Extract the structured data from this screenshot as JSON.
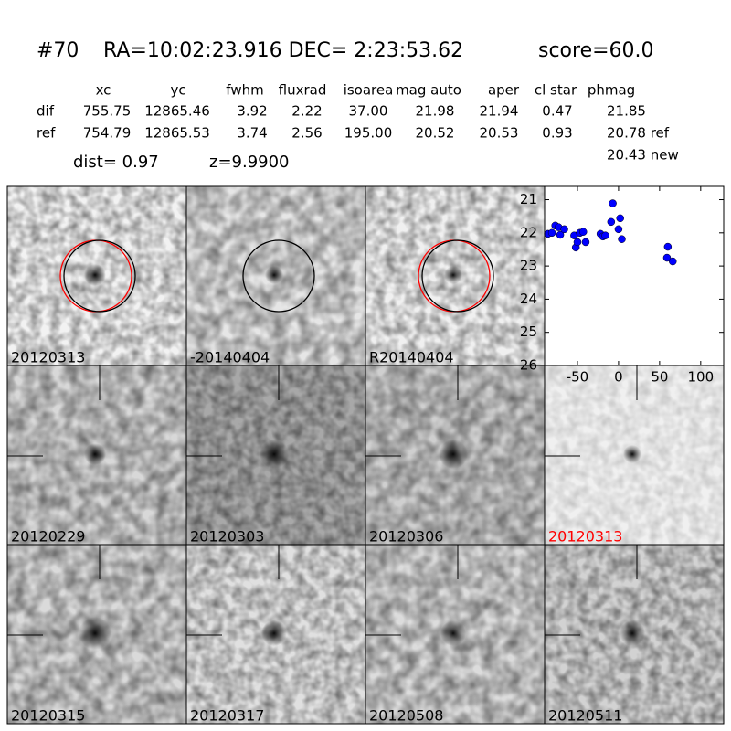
{
  "header": {
    "id": "#70",
    "coords": "RA=10:02:23.916 DEC= 2:23:53.62",
    "score": "score=60.0"
  },
  "table": {
    "columns": [
      "xc",
      "yc",
      "fwhm",
      "fluxrad",
      "isoarea",
      "mag auto",
      "aper",
      "cl star",
      "phmag"
    ],
    "rows": [
      [
        "dif",
        "755.75",
        "12865.46",
        "3.92",
        "2.22",
        "37.00",
        "21.98",
        "21.94",
        "0.47",
        "21.85"
      ],
      [
        "ref",
        "754.79",
        "12865.53",
        "3.74",
        "2.56",
        "195.00",
        "20.52",
        "20.53",
        "0.93",
        "20.78 ref"
      ]
    ],
    "extra": "20.43 new"
  },
  "dist": "dist=  0.97",
  "z": "z=9.9900",
  "stamps": [
    {
      "label": "20120313",
      "color": "#000000"
    },
    {
      "label": "-20140404",
      "color": "#000000"
    },
    {
      "label": "R20140404",
      "color": "#000000"
    },
    {
      "label": "20120229",
      "color": "#000000"
    },
    {
      "label": "20120303",
      "color": "#000000"
    },
    {
      "label": "20120306",
      "color": "#000000"
    },
    {
      "label": "20120313",
      "color": "#ff0000"
    },
    {
      "label": "20120315",
      "color": "#000000"
    },
    {
      "label": "20120317",
      "color": "#000000"
    },
    {
      "label": "20120508",
      "color": "#000000"
    },
    {
      "label": "20120511",
      "color": "#000000"
    }
  ],
  "chart_data": {
    "type": "scatter",
    "x": [
      -86,
      -81,
      -77,
      -73,
      -71,
      -66,
      -54,
      -52,
      -50,
      -47,
      -43,
      -40,
      -22,
      -19,
      -16,
      -9,
      -7,
      0,
      2,
      4,
      60,
      59,
      66
    ],
    "values": [
      22.03,
      22.0,
      21.78,
      21.83,
      22.06,
      21.89,
      22.08,
      22.44,
      22.28,
      22.0,
      21.97,
      22.28,
      22.03,
      22.11,
      22.08,
      21.67,
      21.11,
      21.89,
      21.56,
      22.19,
      22.42,
      22.75,
      22.86
    ],
    "errors": [
      0.05,
      0.05,
      0.05,
      0.05,
      0.05,
      0.05,
      0.05,
      0.12,
      0.05,
      0.05,
      0.05,
      0.05,
      0.05,
      0.05,
      0.05,
      0.05,
      0.05,
      0.05,
      0.05,
      0.05,
      0.1,
      0.1,
      0.12
    ],
    "color": "#0000ff",
    "xlim": [
      -90,
      128
    ],
    "ylim": [
      20.6,
      26
    ],
    "y_inverted": true,
    "xticks": [
      -50,
      0,
      50,
      100
    ],
    "yticks": [
      21,
      22,
      23,
      24,
      25,
      26
    ]
  }
}
